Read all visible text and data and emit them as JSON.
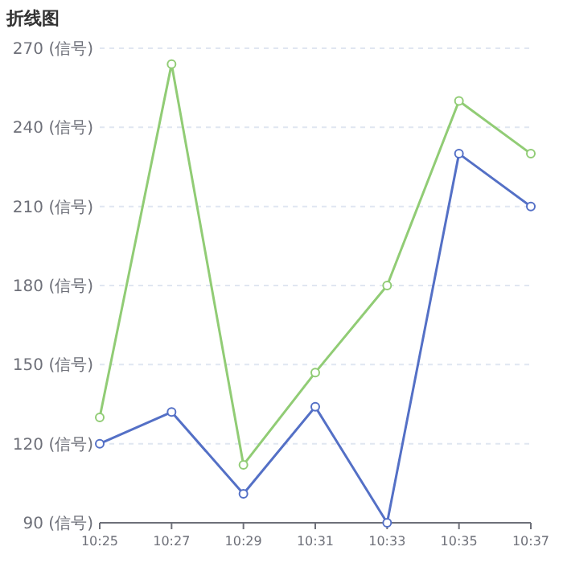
{
  "chart_data": {
    "type": "line",
    "title": "折线图",
    "categories": [
      "10:25",
      "10:27",
      "10:29",
      "10:31",
      "10:33",
      "10:35",
      "10:37"
    ],
    "series": [
      {
        "color": "#91cc75",
        "values": [
          130,
          264,
          112,
          147,
          180,
          250,
          230
        ]
      },
      {
        "color": "#5470c6",
        "values": [
          120,
          132,
          101,
          134,
          90,
          230,
          210
        ]
      }
    ],
    "ylim": [
      90,
      270
    ],
    "yticks": [
      {
        "value": 90,
        "label": "90 (信号)"
      },
      {
        "value": 120,
        "label": "120 (信号)"
      },
      {
        "value": 150,
        "label": "150 (信号)"
      },
      {
        "value": 180,
        "label": "180 (信号)"
      },
      {
        "value": 210,
        "label": "210 (信号)"
      },
      {
        "value": 240,
        "label": "240 (信号)"
      },
      {
        "value": 270,
        "label": "270 (信号)"
      }
    ],
    "grid": "y",
    "marker": "circle",
    "line_style": "solid"
  }
}
